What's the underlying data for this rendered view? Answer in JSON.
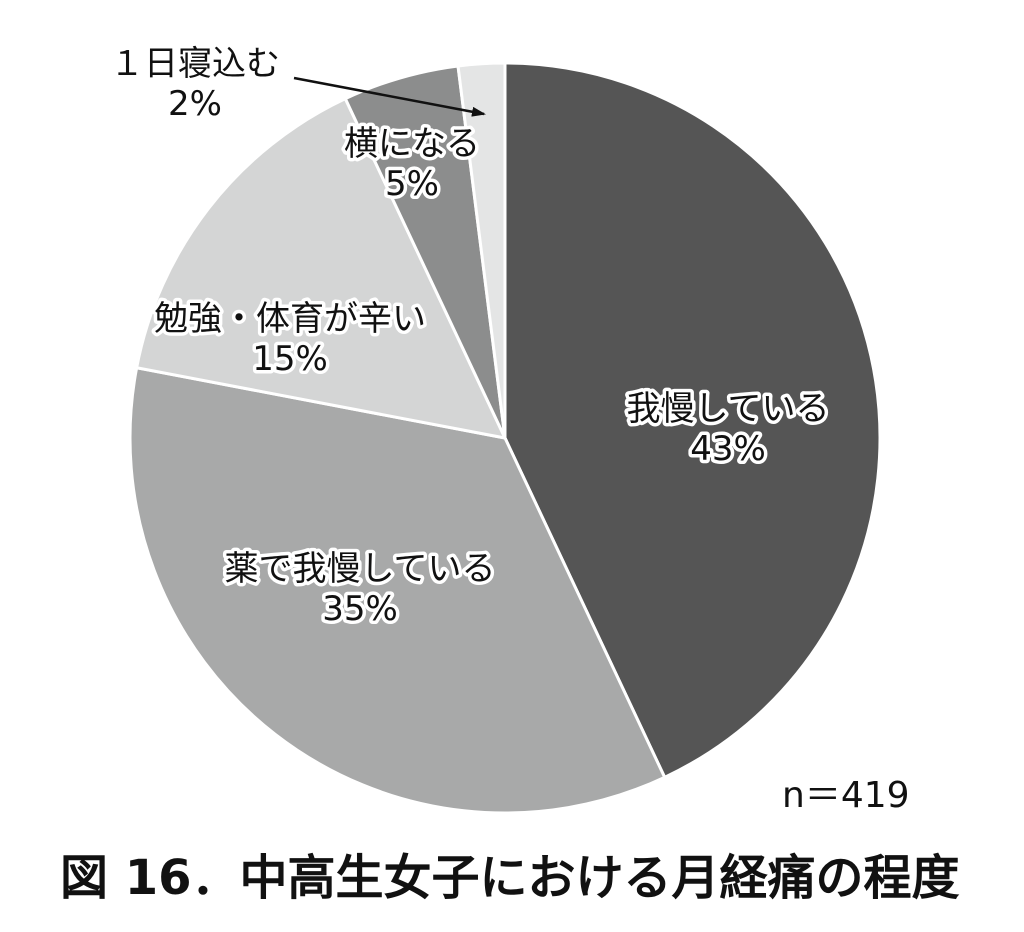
{
  "chart_data": {
    "type": "pie",
    "title": "図 16．中高生女子における月経痛の程度",
    "n_label": "n＝419",
    "start": "12 o'clock",
    "direction": "clockwise",
    "slices": [
      {
        "label": "我慢している",
        "pct_label": "43%",
        "value": 43,
        "color": "#555555"
      },
      {
        "label": "薬で我慢している",
        "pct_label": "35%",
        "value": 35,
        "color": "#a8a9a9"
      },
      {
        "label": "勉強・体育が辛い",
        "pct_label": "15%",
        "value": 15,
        "color": "#d4d5d5"
      },
      {
        "label": "横になる",
        "pct_label": "5%",
        "value": 5,
        "color": "#8c8d8d"
      },
      {
        "label": "１日寝込む",
        "pct_label": "2%",
        "value": 2,
        "color": "#e4e5e5"
      }
    ]
  }
}
